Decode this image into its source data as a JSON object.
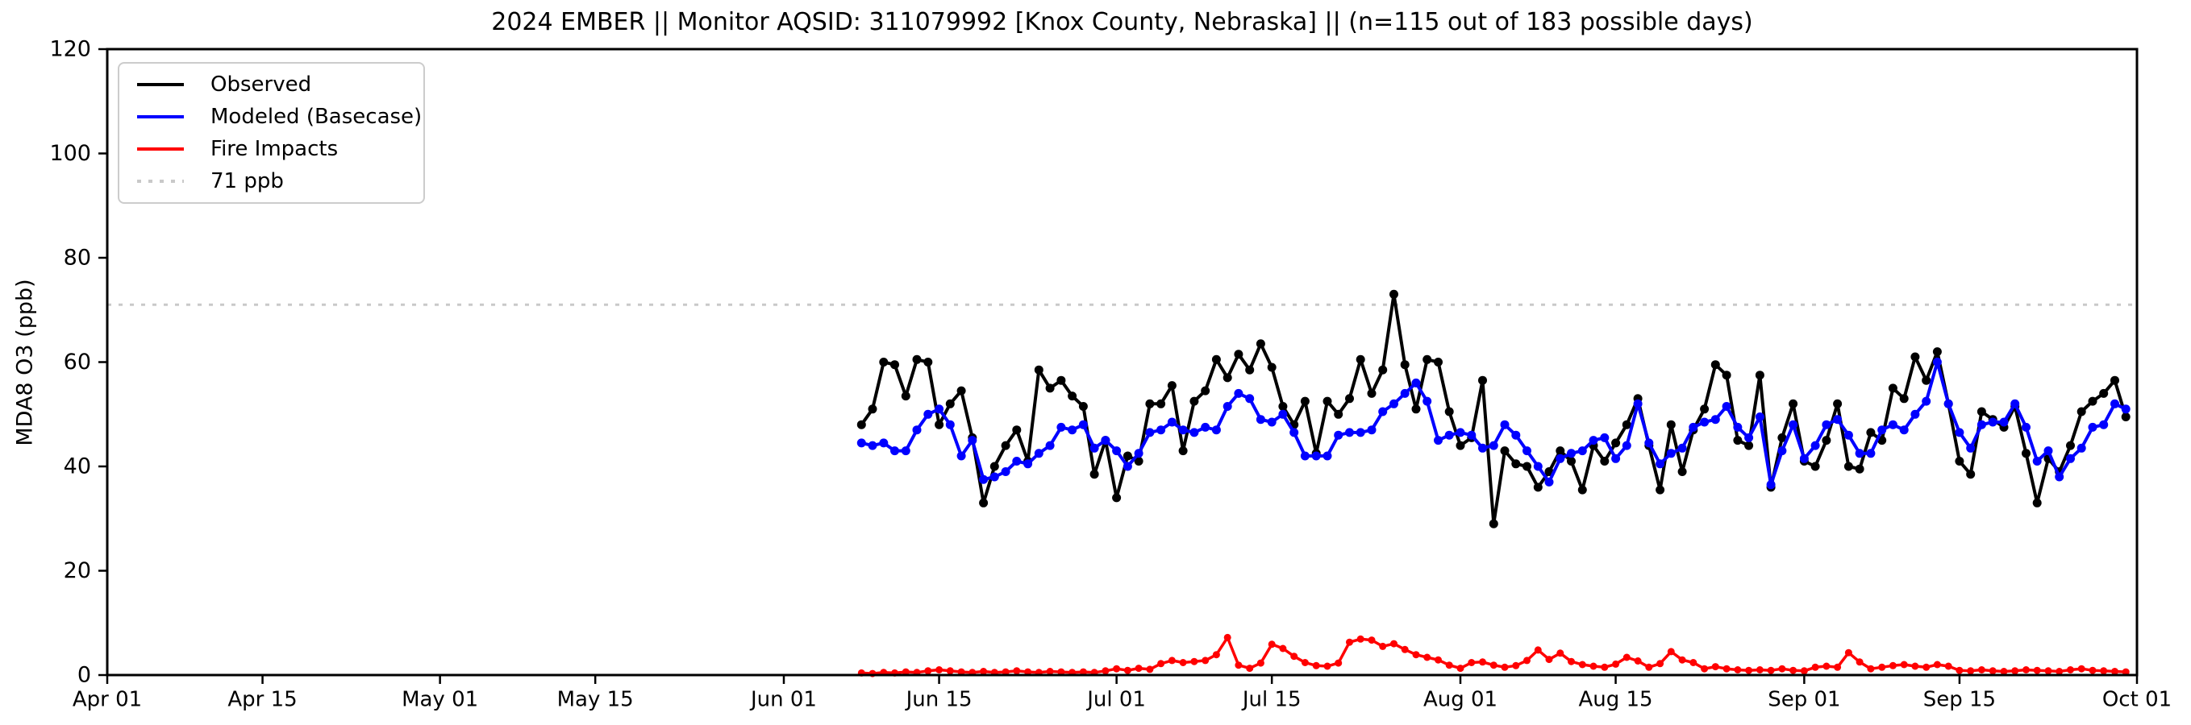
{
  "header": {
    "title": "2024 EMBER || Monitor AQSID: 311079992 [Knox County, Nebraska] || (n=115 out of 183 possible days)"
  },
  "axes": {
    "ylabel": "MDA8 O3 (ppb)",
    "ylim": [
      0,
      120
    ],
    "yticks": [
      0,
      20,
      40,
      60,
      80,
      100,
      120
    ],
    "total_days": 183,
    "xticks": [
      {
        "label": "Apr 01",
        "day": 0
      },
      {
        "label": "Apr 15",
        "day": 14
      },
      {
        "label": "May 01",
        "day": 30
      },
      {
        "label": "May 15",
        "day": 44
      },
      {
        "label": "Jun 01",
        "day": 61
      },
      {
        "label": "Jun 15",
        "day": 75
      },
      {
        "label": "Jul 01",
        "day": 91
      },
      {
        "label": "Jul 15",
        "day": 105
      },
      {
        "label": "Aug 01",
        "day": 122
      },
      {
        "label": "Aug 15",
        "day": 136
      },
      {
        "label": "Sep 01",
        "day": 153
      },
      {
        "label": "Sep 15",
        "day": 167
      },
      {
        "label": "Oct 01",
        "day": 183
      }
    ]
  },
  "legend": {
    "items": [
      {
        "label": "Observed",
        "color": "#000000",
        "style": "solid"
      },
      {
        "label": "Modeled (Basecase)",
        "color": "#0000ff",
        "style": "solid"
      },
      {
        "label": "Fire Impacts",
        "color": "#ff0000",
        "style": "solid"
      },
      {
        "label": "71 ppb",
        "color": "#c9c9c9",
        "style": "dotted"
      }
    ]
  },
  "chart_data": {
    "type": "line",
    "title": "2024 EMBER || Monitor AQSID: 311079992 [Knox County, Nebraska] || (n=115 out of 183 possible days)",
    "xlabel": "",
    "ylabel": "MDA8 O3 (ppb)",
    "ylim": [
      0,
      120
    ],
    "xlim_labels": [
      "Apr 01",
      "Oct 01"
    ],
    "grid": false,
    "legend_position": "upper left",
    "threshold": {
      "value": 71,
      "label": "71 ppb",
      "color": "#c9c9c9",
      "style": "dotted"
    },
    "start_day_offset": 68,
    "dates": [
      "Jun 08",
      "Jun 09",
      "Jun 10",
      "Jun 11",
      "Jun 12",
      "Jun 13",
      "Jun 14",
      "Jun 15",
      "Jun 16",
      "Jun 17",
      "Jun 18",
      "Jun 19",
      "Jun 20",
      "Jun 21",
      "Jun 22",
      "Jun 23",
      "Jun 24",
      "Jun 25",
      "Jun 26",
      "Jun 27",
      "Jun 28",
      "Jun 29",
      "Jun 30",
      "Jul 01",
      "Jul 02",
      "Jul 03",
      "Jul 04",
      "Jul 05",
      "Jul 06",
      "Jul 07",
      "Jul 08",
      "Jul 09",
      "Jul 10",
      "Jul 11",
      "Jul 12",
      "Jul 13",
      "Jul 14",
      "Jul 15",
      "Jul 16",
      "Jul 17",
      "Jul 18",
      "Jul 19",
      "Jul 20",
      "Jul 21",
      "Jul 22",
      "Jul 23",
      "Jul 24",
      "Jul 25",
      "Jul 26",
      "Jul 27",
      "Jul 28",
      "Jul 29",
      "Jul 30",
      "Jul 31",
      "Aug 01",
      "Aug 02",
      "Aug 03",
      "Aug 04",
      "Aug 05",
      "Aug 06",
      "Aug 07",
      "Aug 08",
      "Aug 09",
      "Aug 10",
      "Aug 11",
      "Aug 12",
      "Aug 13",
      "Aug 14",
      "Aug 15",
      "Aug 16",
      "Aug 17",
      "Aug 18",
      "Aug 19",
      "Aug 20",
      "Aug 21",
      "Aug 22",
      "Aug 23",
      "Aug 24",
      "Aug 25",
      "Aug 26",
      "Aug 27",
      "Aug 28",
      "Aug 29",
      "Aug 30",
      "Aug 31",
      "Sep 01",
      "Sep 02",
      "Sep 03",
      "Sep 04",
      "Sep 05",
      "Sep 06",
      "Sep 07",
      "Sep 08",
      "Sep 09",
      "Sep 10",
      "Sep 11",
      "Sep 12",
      "Sep 13",
      "Sep 14",
      "Sep 15",
      "Sep 16",
      "Sep 17",
      "Sep 18",
      "Sep 19",
      "Sep 20",
      "Sep 21",
      "Sep 22",
      "Sep 23",
      "Sep 24",
      "Sep 25",
      "Sep 26",
      "Sep 27",
      "Sep 28",
      "Sep 29",
      "Sep 30"
    ],
    "series": [
      {
        "name": "Observed",
        "color": "#000000",
        "values": [
          48,
          51,
          60,
          59.5,
          53.5,
          60.5,
          60,
          48,
          52,
          54.5,
          45.5,
          33,
          40,
          44,
          47,
          41,
          58.5,
          55,
          56.5,
          53.5,
          51.5,
          38.5,
          45,
          34,
          42,
          41,
          52,
          52,
          55.5,
          43,
          52.5,
          54.5,
          60.5,
          57,
          61.5,
          58.5,
          63.5,
          59,
          51.5,
          48,
          52.5,
          42.5,
          52.5,
          50,
          53,
          60.5,
          54,
          58.5,
          73,
          59.5,
          51,
          60.5,
          60,
          50.5,
          44,
          45.5,
          56.5,
          29,
          43,
          40.5,
          40,
          36,
          39,
          43,
          41,
          35.5,
          44,
          41,
          44.5,
          48,
          53,
          44,
          35.5,
          48,
          39,
          47,
          51,
          59.5,
          57.5,
          45,
          44,
          57.5,
          36,
          45.5,
          52,
          41,
          40,
          45,
          52,
          40,
          39.5,
          46.5,
          45,
          55,
          53,
          61,
          56.5,
          62,
          52,
          41,
          38.5,
          50.5,
          49,
          47.5,
          51.5,
          42.5,
          33,
          41.5,
          39,
          44,
          50.5,
          52.5,
          54,
          56.5,
          49.5
        ]
      },
      {
        "name": "Modeled (Basecase)",
        "color": "#0000ff",
        "values": [
          44.5,
          44,
          44.5,
          43,
          43,
          47,
          50,
          51,
          48,
          42,
          45,
          37.5,
          38,
          39,
          41,
          40.5,
          42.5,
          44,
          47.5,
          47,
          48,
          43.5,
          45,
          43,
          40,
          42.5,
          46.5,
          47,
          48.5,
          47,
          46.5,
          47.5,
          47,
          51.5,
          54,
          53,
          49,
          48.5,
          50,
          46.5,
          42,
          42,
          42,
          46,
          46.5,
          46.5,
          47,
          50.5,
          52,
          54,
          56,
          52.5,
          45,
          46,
          46.5,
          46,
          43.5,
          44,
          48,
          46,
          43,
          40,
          37,
          41.5,
          42.5,
          43,
          45,
          45.5,
          41.5,
          44,
          52,
          44.5,
          40.5,
          42.5,
          43.5,
          47.5,
          48.5,
          49,
          51.5,
          47.5,
          45.5,
          49.5,
          36.5,
          43,
          48,
          41.5,
          44,
          48,
          49,
          46,
          42.5,
          42.5,
          47,
          48,
          47,
          50,
          52.5,
          60,
          52,
          46.5,
          43.5,
          48,
          48.5,
          48.5,
          52,
          47.5,
          41,
          43,
          38,
          41.5,
          43.5,
          47.5,
          48,
          52,
          51
        ]
      },
      {
        "name": "Fire Impacts",
        "color": "#ff0000",
        "values": [
          0.4,
          0.3,
          0.5,
          0.4,
          0.6,
          0.5,
          0.8,
          1,
          0.8,
          0.6,
          0.5,
          0.7,
          0.5,
          0.6,
          0.8,
          0.6,
          0.5,
          0.7,
          0.6,
          0.5,
          0.6,
          0.5,
          0.8,
          1.2,
          0.9,
          1.3,
          1.1,
          2.2,
          2.8,
          2.4,
          2.6,
          2.8,
          3.9,
          7.2,
          1.9,
          1.3,
          2.3,
          5.9,
          5.1,
          3.6,
          2.4,
          1.8,
          1.7,
          2.3,
          6.3,
          6.9,
          6.7,
          5.5,
          6,
          4.9,
          3.9,
          3.4,
          2.9,
          1.9,
          1.3,
          2.4,
          2.5,
          1.9,
          1.5,
          1.8,
          2.8,
          4.8,
          3,
          4.2,
          2.6,
          2,
          1.7,
          1.5,
          2.1,
          3.4,
          2.7,
          1.5,
          2.2,
          4.5,
          2.9,
          2.4,
          1.2,
          1.6,
          1.2,
          1,
          0.9,
          1,
          0.9,
          1.2,
          0.9,
          0.8,
          1.5,
          1.7,
          1.5,
          4.3,
          2.5,
          1.2,
          1.5,
          1.8,
          2,
          1.7,
          1.5,
          2,
          1.7,
          0.9,
          0.8,
          1,
          0.8,
          0.7,
          0.8,
          1,
          0.9,
          0.8,
          0.7,
          1,
          1.2,
          0.9,
          0.8,
          0.7,
          0.6
        ]
      }
    ]
  }
}
